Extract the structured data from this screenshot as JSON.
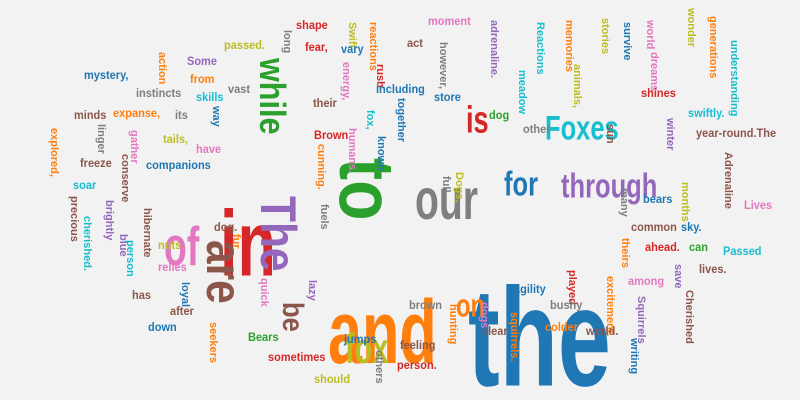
{
  "palette": {
    "blue": "#1f77b4",
    "orange": "#ff7f0e",
    "green": "#2ca02c",
    "red": "#d62728",
    "purple": "#9467bd",
    "brown": "#8c564b",
    "pink": "#e377c2",
    "gray": "#7f7f7f",
    "olive": "#bcbd22",
    "cyan": "#17becf"
  },
  "words": [
    {
      "text": "the",
      "color": "blue"
    },
    {
      "text": "and",
      "color": "orange"
    },
    {
      "text": "to",
      "color": "green"
    },
    {
      "text": "in",
      "color": "red"
    },
    {
      "text": "The",
      "color": "purple"
    },
    {
      "text": "are",
      "color": "brown"
    },
    {
      "text": "of",
      "color": "pink"
    },
    {
      "text": "our",
      "color": "gray"
    },
    {
      "text": "fox",
      "color": "olive"
    },
    {
      "text": "Foxes",
      "color": "cyan"
    },
    {
      "text": "through",
      "color": "purple"
    },
    {
      "text": "while",
      "color": "green"
    },
    {
      "text": "is",
      "color": "red"
    },
    {
      "text": "for",
      "color": "blue"
    },
    {
      "text": "on",
      "color": "orange"
    },
    {
      "text": "be",
      "color": "brown"
    },
    {
      "text": "shape",
      "color": "red"
    },
    {
      "text": "Swift",
      "color": "olive"
    },
    {
      "text": "reactions",
      "color": "orange"
    },
    {
      "text": "moment",
      "color": "pink"
    },
    {
      "text": "adrenaline.",
      "color": "purple"
    },
    {
      "text": "Reactions",
      "color": "cyan"
    },
    {
      "text": "memories",
      "color": "orange"
    },
    {
      "text": "stories",
      "color": "olive"
    },
    {
      "text": "world",
      "color": "pink"
    },
    {
      "text": "wonder",
      "color": "olive"
    },
    {
      "text": "generations",
      "color": "orange"
    },
    {
      "text": "understanding",
      "color": "cyan"
    },
    {
      "text": "long",
      "color": "gray"
    },
    {
      "text": "fear,",
      "color": "red"
    },
    {
      "text": "vary",
      "color": "blue"
    },
    {
      "text": "act",
      "color": "brown"
    },
    {
      "text": "however,",
      "color": "gray"
    },
    {
      "text": "survive",
      "color": "blue"
    },
    {
      "text": "dreams",
      "color": "pink"
    },
    {
      "text": "passed.",
      "color": "olive"
    },
    {
      "text": "Some",
      "color": "purple"
    },
    {
      "text": "action",
      "color": "orange"
    },
    {
      "text": "mystery,",
      "color": "blue"
    },
    {
      "text": "from",
      "color": "orange"
    },
    {
      "text": "vast",
      "color": "gray"
    },
    {
      "text": "energy,",
      "color": "pink"
    },
    {
      "text": "rush",
      "color": "red"
    },
    {
      "text": "including",
      "color": "blue"
    },
    {
      "text": "meadow",
      "color": "cyan"
    },
    {
      "text": "animals,",
      "color": "olive"
    },
    {
      "text": "shines",
      "color": "red"
    },
    {
      "text": "instincts",
      "color": "gray"
    },
    {
      "text": "skills",
      "color": "cyan"
    },
    {
      "text": "store",
      "color": "blue"
    },
    {
      "text": "swiftly.",
      "color": "cyan"
    },
    {
      "text": "minds",
      "color": "brown"
    },
    {
      "text": "expanse,",
      "color": "orange"
    },
    {
      "text": "its",
      "color": "gray"
    },
    {
      "text": "way",
      "color": "blue"
    },
    {
      "text": "their",
      "color": "brown"
    },
    {
      "text": "fox,",
      "color": "cyan"
    },
    {
      "text": "together",
      "color": "blue"
    },
    {
      "text": "dog",
      "color": "green"
    },
    {
      "text": "other",
      "color": "gray"
    },
    {
      "text": "sun",
      "color": "brown"
    },
    {
      "text": "winter",
      "color": "purple"
    },
    {
      "text": "explored,",
      "color": "orange"
    },
    {
      "text": "linger",
      "color": "gray"
    },
    {
      "text": "gather",
      "color": "pink"
    },
    {
      "text": "tails,",
      "color": "olive"
    },
    {
      "text": "have",
      "color": "pink"
    },
    {
      "text": "Brown",
      "color": "red"
    },
    {
      "text": "humans.",
      "color": "pink"
    },
    {
      "text": "known",
      "color": "blue"
    },
    {
      "text": "cunning.",
      "color": "orange"
    },
    {
      "text": "year-round.The",
      "color": "brown"
    },
    {
      "text": "Adrenaline",
      "color": "brown"
    },
    {
      "text": "freeze",
      "color": "brown"
    },
    {
      "text": "conserve",
      "color": "brown"
    },
    {
      "text": "companions",
      "color": "blue"
    },
    {
      "text": "full",
      "color": "gray"
    },
    {
      "text": "Dogs,",
      "color": "olive"
    },
    {
      "text": "soar",
      "color": "cyan"
    },
    {
      "text": "precious",
      "color": "brown"
    },
    {
      "text": "brightly",
      "color": "purple"
    },
    {
      "text": "months",
      "color": "olive"
    },
    {
      "text": "many",
      "color": "gray"
    },
    {
      "text": "bears",
      "color": "blue"
    },
    {
      "text": "sky.",
      "color": "blue"
    },
    {
      "text": "Lives",
      "color": "pink"
    },
    {
      "text": "hibernate",
      "color": "brown"
    },
    {
      "text": "dog.",
      "color": "brown"
    },
    {
      "text": "fuels",
      "color": "gray"
    },
    {
      "text": "common",
      "color": "brown"
    },
    {
      "text": "cherished.",
      "color": "cyan"
    },
    {
      "text": "blue",
      "color": "purple"
    },
    {
      "text": "fur",
      "color": "orange"
    },
    {
      "text": "nuts",
      "color": "olive"
    },
    {
      "text": "theirs",
      "color": "orange"
    },
    {
      "text": "ahead.",
      "color": "red"
    },
    {
      "text": "can",
      "color": "green"
    },
    {
      "text": "Passed",
      "color": "cyan"
    },
    {
      "text": "person",
      "color": "cyan"
    },
    {
      "text": "relies",
      "color": "pink"
    },
    {
      "text": "has",
      "color": "brown"
    },
    {
      "text": "loyal",
      "color": "blue"
    },
    {
      "text": "lazy",
      "color": "purple"
    },
    {
      "text": "brown",
      "color": "gray"
    },
    {
      "text": "played",
      "color": "red"
    },
    {
      "text": "agility",
      "color": "blue"
    },
    {
      "text": "excitement.",
      "color": "orange"
    },
    {
      "text": "among",
      "color": "pink"
    },
    {
      "text": "save",
      "color": "purple"
    },
    {
      "text": "lives.",
      "color": "brown"
    },
    {
      "text": "Cherished",
      "color": "brown"
    },
    {
      "text": "quick",
      "color": "pink"
    },
    {
      "text": "after",
      "color": "brown"
    },
    {
      "text": "hunting",
      "color": "orange"
    },
    {
      "text": "dogs",
      "color": "pink"
    },
    {
      "text": "bushy",
      "color": "gray"
    },
    {
      "text": "Squirrels",
      "color": "purple"
    },
    {
      "text": "down",
      "color": "blue"
    },
    {
      "text": "squirrels.",
      "color": "orange"
    },
    {
      "text": "Bears",
      "color": "green"
    },
    {
      "text": "jumps",
      "color": "blue"
    },
    {
      "text": "feeling",
      "color": "brown"
    },
    {
      "text": "clear",
      "color": "brown"
    },
    {
      "text": "colder",
      "color": "orange"
    },
    {
      "text": "world.",
      "color": "brown"
    },
    {
      "text": "seekers",
      "color": "orange"
    },
    {
      "text": "sometimes",
      "color": "red"
    },
    {
      "text": "person.",
      "color": "red"
    },
    {
      "text": "writing",
      "color": "blue"
    },
    {
      "text": "others",
      "color": "gray"
    },
    {
      "text": "should",
      "color": "olive"
    }
  ]
}
